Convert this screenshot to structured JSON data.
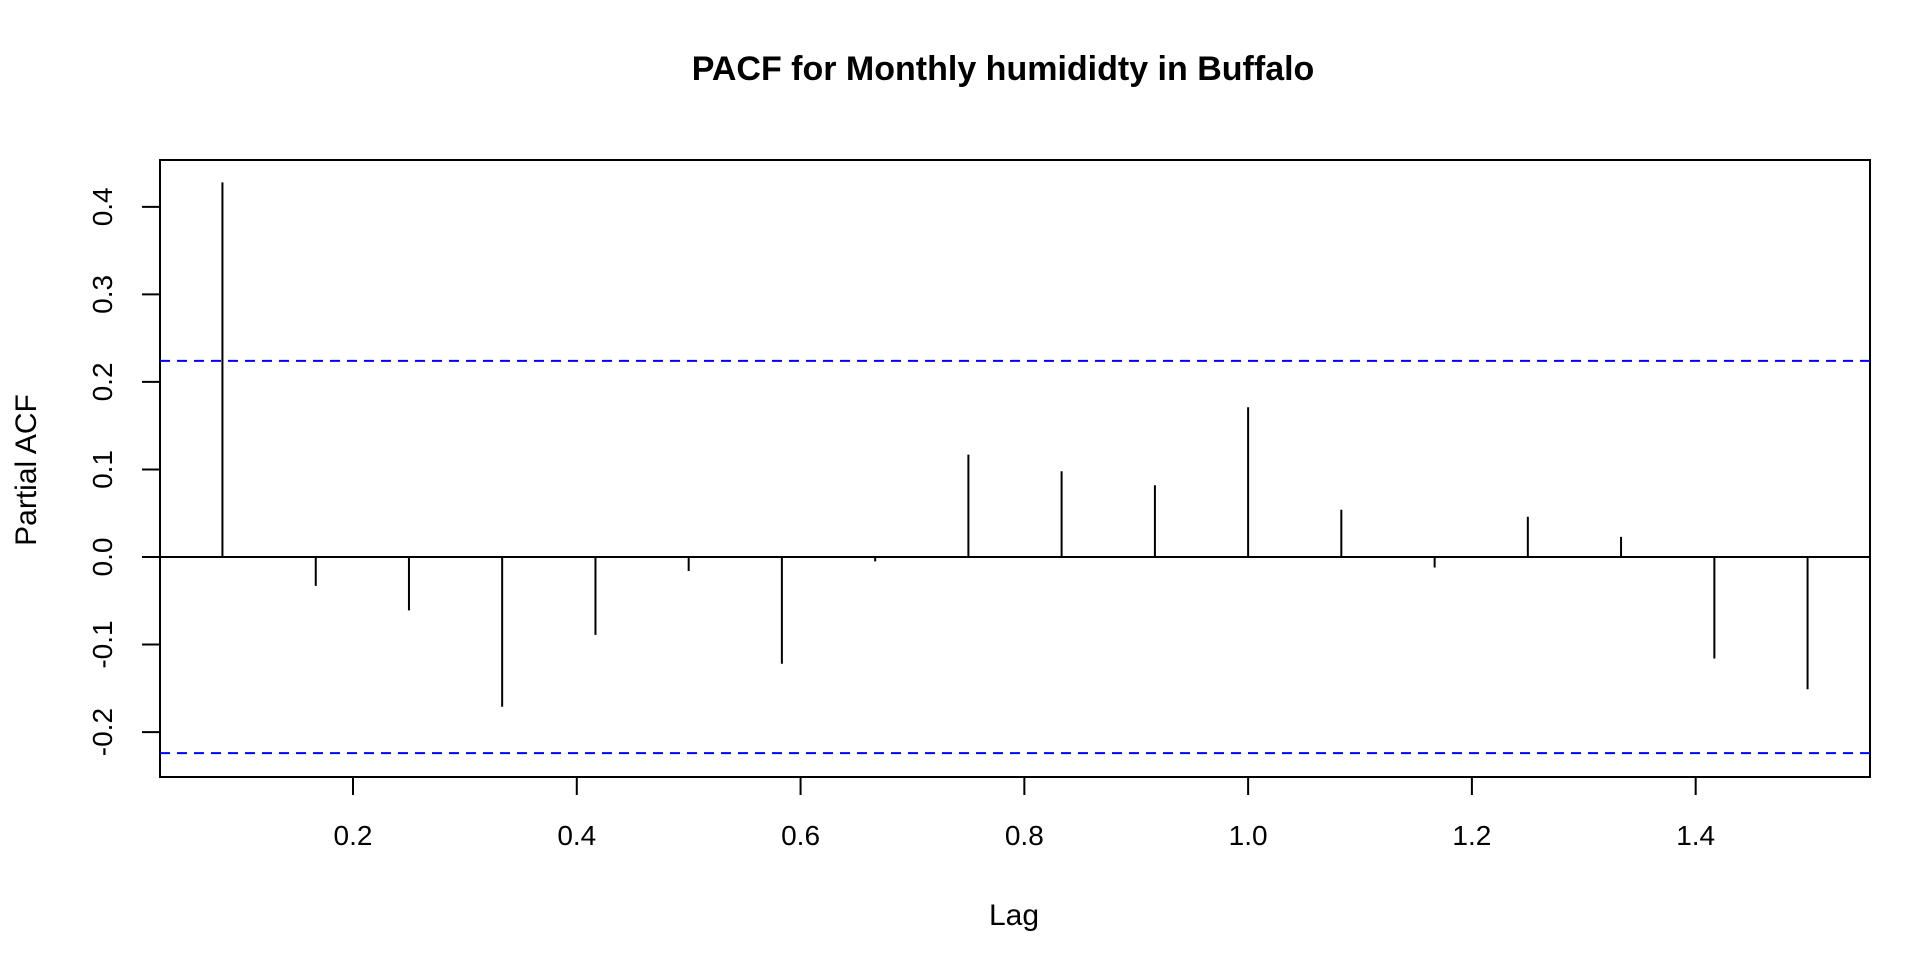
{
  "chart_data": {
    "type": "bar",
    "title": "PACF for Monthly humididty in Buffalo",
    "xlabel": "Lag",
    "ylabel": "Partial ACF",
    "xlim": [
      0.0275,
      1.5558
    ],
    "ylim": [
      -0.2513,
      0.4535
    ],
    "x_ticks": [
      0.2,
      0.4,
      0.6,
      0.8,
      1.0,
      1.2,
      1.4
    ],
    "x_tick_labels": [
      "0.2",
      "0.4",
      "0.6",
      "0.8",
      "1.0",
      "1.2",
      "1.4"
    ],
    "y_ticks": [
      -0.2,
      -0.1,
      0.0,
      0.1,
      0.2,
      0.3,
      0.4
    ],
    "y_tick_labels": [
      "-0.2",
      "-0.1",
      "0.0",
      "0.1",
      "0.2",
      "0.3",
      "0.4"
    ],
    "lags": [
      0.0833,
      0.1667,
      0.25,
      0.3333,
      0.4167,
      0.5,
      0.5833,
      0.6667,
      0.75,
      0.8333,
      0.9167,
      1.0,
      1.0833,
      1.1667,
      1.25,
      1.3333,
      1.4167,
      1.5
    ],
    "values": [
      0.428,
      -0.033,
      -0.061,
      -0.171,
      -0.089,
      -0.016,
      -0.122,
      -0.005,
      0.117,
      0.098,
      0.082,
      0.171,
      0.054,
      -0.012,
      0.046,
      0.023,
      -0.116,
      -0.151
    ],
    "confidence_bounds": [
      0.224,
      -0.224
    ],
    "grid": false,
    "colors": {
      "bars": "#000000",
      "bounds": "#0000ff",
      "axis": "#000000"
    }
  }
}
